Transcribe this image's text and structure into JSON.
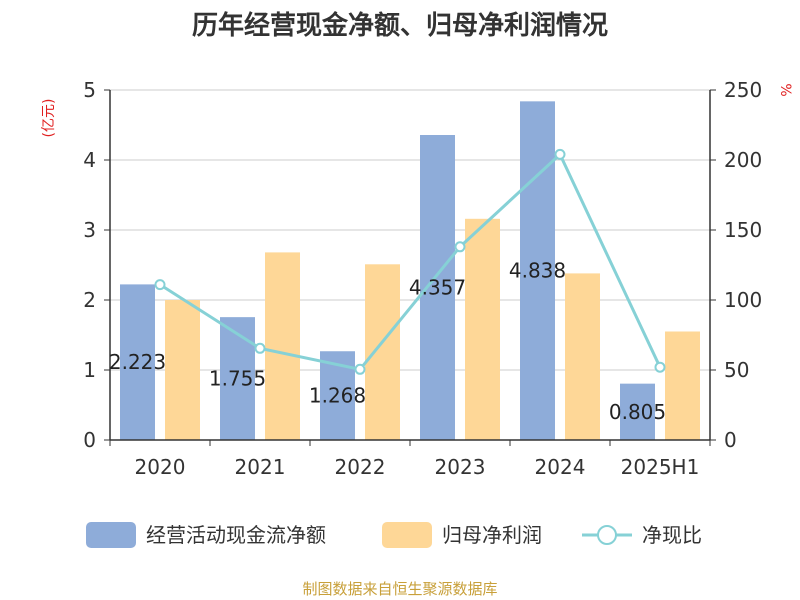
{
  "chart_data": {
    "type": "bar",
    "title": "历年经营现金净额、归母净利润情况",
    "categories": [
      "2020",
      "2021",
      "2022",
      "2023",
      "2024",
      "2025H1"
    ],
    "y_left": {
      "unit": "(亿元)",
      "range": [
        0,
        5
      ],
      "ticks": [
        0,
        1,
        2,
        3,
        4,
        5
      ]
    },
    "y_right": {
      "unit": "%",
      "range": [
        0,
        250
      ],
      "ticks": [
        0,
        50,
        100,
        150,
        200,
        250
      ]
    },
    "grid": true,
    "legend_position": "bottom",
    "series": [
      {
        "name": "经营活动现金流净额",
        "type": "bar",
        "axis": "left",
        "color": "#8eacd9",
        "values": [
          2.223,
          1.755,
          1.268,
          4.357,
          4.838,
          0.805
        ],
        "labels": [
          "2.223",
          "1.755",
          "1.268",
          "4.357",
          "4.838",
          "0.805"
        ]
      },
      {
        "name": "归母净利润",
        "type": "bar",
        "axis": "left",
        "color": "#fed797",
        "values": [
          2.0,
          2.68,
          2.51,
          3.16,
          2.38,
          1.55
        ]
      },
      {
        "name": "净现比",
        "type": "line",
        "axis": "right",
        "color": "#86d1d6",
        "values": [
          111,
          65.5,
          50.5,
          138,
          204,
          52
        ]
      }
    ],
    "source": "制图数据来自恒生聚源数据库",
    "colors": {
      "title": "#333333",
      "unit": "#e02020",
      "source": "#c8a03a",
      "axis": "#333333",
      "grid": "#cccccc"
    }
  }
}
